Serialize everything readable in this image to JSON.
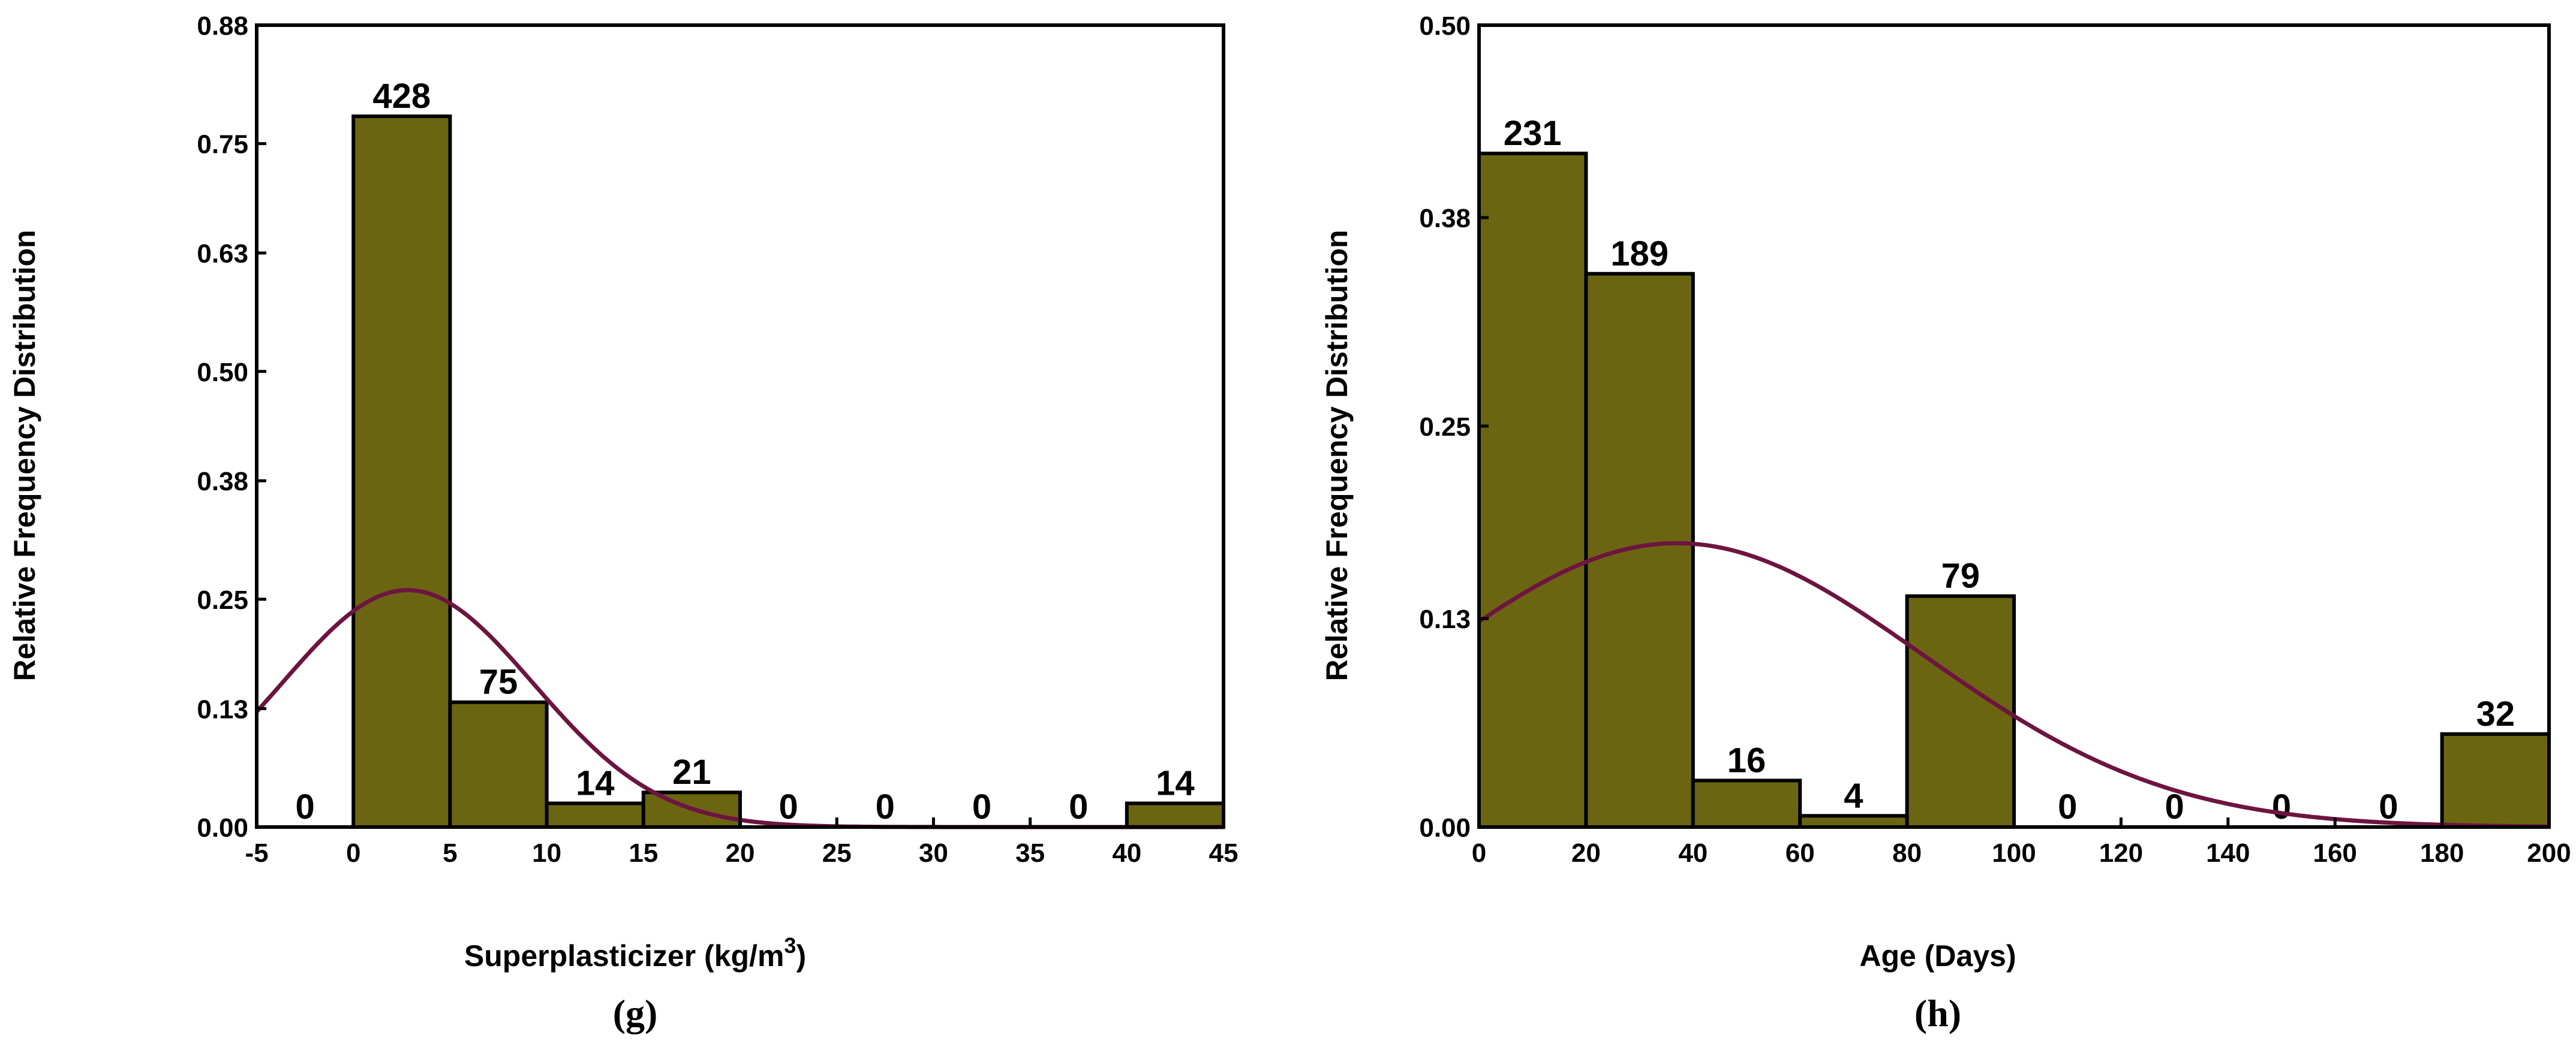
{
  "chart_data": [
    {
      "type": "bar",
      "panel_label": "(g)",
      "xlabel": "Superplasticizer (kg/m",
      "xlabel_sup": "3",
      "xlabel_close": ")",
      "ylabel": "Relative Frequency Distribution",
      "xlim": [
        -5,
        45
      ],
      "ylim": [
        0,
        0.88
      ],
      "xticks": [
        -5,
        0,
        5,
        10,
        15,
        20,
        25,
        30,
        35,
        40,
        45
      ],
      "yticks": [
        "0.00",
        "0.13",
        "0.25",
        "0.38",
        "0.50",
        "0.63",
        "0.75",
        "0.88"
      ],
      "bins": [
        {
          "start": -5,
          "end": 0,
          "count": "0",
          "value": 0.0
        },
        {
          "start": 0,
          "end": 5,
          "count": "428",
          "value": 0.78
        },
        {
          "start": 5,
          "end": 10,
          "count": "75",
          "value": 0.137
        },
        {
          "start": 10,
          "end": 15,
          "count": "14",
          "value": 0.026
        },
        {
          "start": 15,
          "end": 20,
          "count": "21",
          "value": 0.038
        },
        {
          "start": 20,
          "end": 25,
          "count": "0",
          "value": 0.0
        },
        {
          "start": 25,
          "end": 30,
          "count": "0",
          "value": 0.0
        },
        {
          "start": 30,
          "end": 35,
          "count": "0",
          "value": 0.0
        },
        {
          "start": 35,
          "end": 40,
          "count": "0",
          "value": 0.0
        },
        {
          "start": 40,
          "end": 45,
          "count": "14",
          "value": 0.026
        }
      ],
      "normal_curve": {
        "mean": 2.8,
        "sd": 6.5,
        "peak": 0.26
      }
    },
    {
      "type": "bar",
      "panel_label": "(h)",
      "xlabel": "Age (Days)",
      "ylabel": "Relative Frequency Distribution",
      "xlim": [
        0,
        200
      ],
      "ylim": [
        0,
        0.5
      ],
      "xticks": [
        0,
        20,
        40,
        60,
        80,
        100,
        120,
        140,
        160,
        180,
        200
      ],
      "yticks": [
        "0.00",
        "0.13",
        "0.25",
        "0.38",
        "0.50"
      ],
      "bins": [
        {
          "start": 0,
          "end": 20,
          "count": "231",
          "value": 0.42
        },
        {
          "start": 20,
          "end": 40,
          "count": "189",
          "value": 0.345
        },
        {
          "start": 40,
          "end": 60,
          "count": "16",
          "value": 0.029
        },
        {
          "start": 60,
          "end": 80,
          "count": "4",
          "value": 0.007
        },
        {
          "start": 80,
          "end": 100,
          "count": "79",
          "value": 0.144
        },
        {
          "start": 100,
          "end": 120,
          "count": "0",
          "value": 0.0
        },
        {
          "start": 120,
          "end": 140,
          "count": "0",
          "value": 0.0
        },
        {
          "start": 140,
          "end": 160,
          "count": "0",
          "value": 0.0
        },
        {
          "start": 160,
          "end": 180,
          "count": "0",
          "value": 0.0
        },
        {
          "start": 180,
          "end": 200,
          "count": "32",
          "value": 0.058
        }
      ],
      "normal_curve": {
        "mean": 37,
        "sd": 46,
        "peak": 0.177
      }
    }
  ]
}
